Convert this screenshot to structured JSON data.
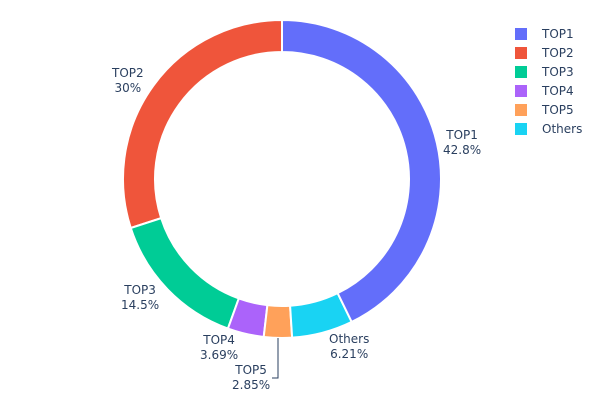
{
  "chart_data": {
    "type": "pie",
    "hole": true,
    "labels": [
      "TOP1",
      "TOP2",
      "TOP3",
      "TOP4",
      "TOP5",
      "Others"
    ],
    "values": [
      42.8,
      30,
      14.5,
      3.69,
      2.85,
      6.21
    ],
    "value_labels": [
      "42.8%",
      "30%",
      "14.5%",
      "3.69%",
      "2.85%",
      "6.21%"
    ],
    "colors": [
      "#636efa",
      "#EF553B",
      "#00cc96",
      "#ab63fa",
      "#FFA15A",
      "#19d3f3"
    ],
    "clockwise_order": [
      0,
      5,
      4,
      3,
      2,
      1
    ],
    "legend_position": "top-right"
  }
}
